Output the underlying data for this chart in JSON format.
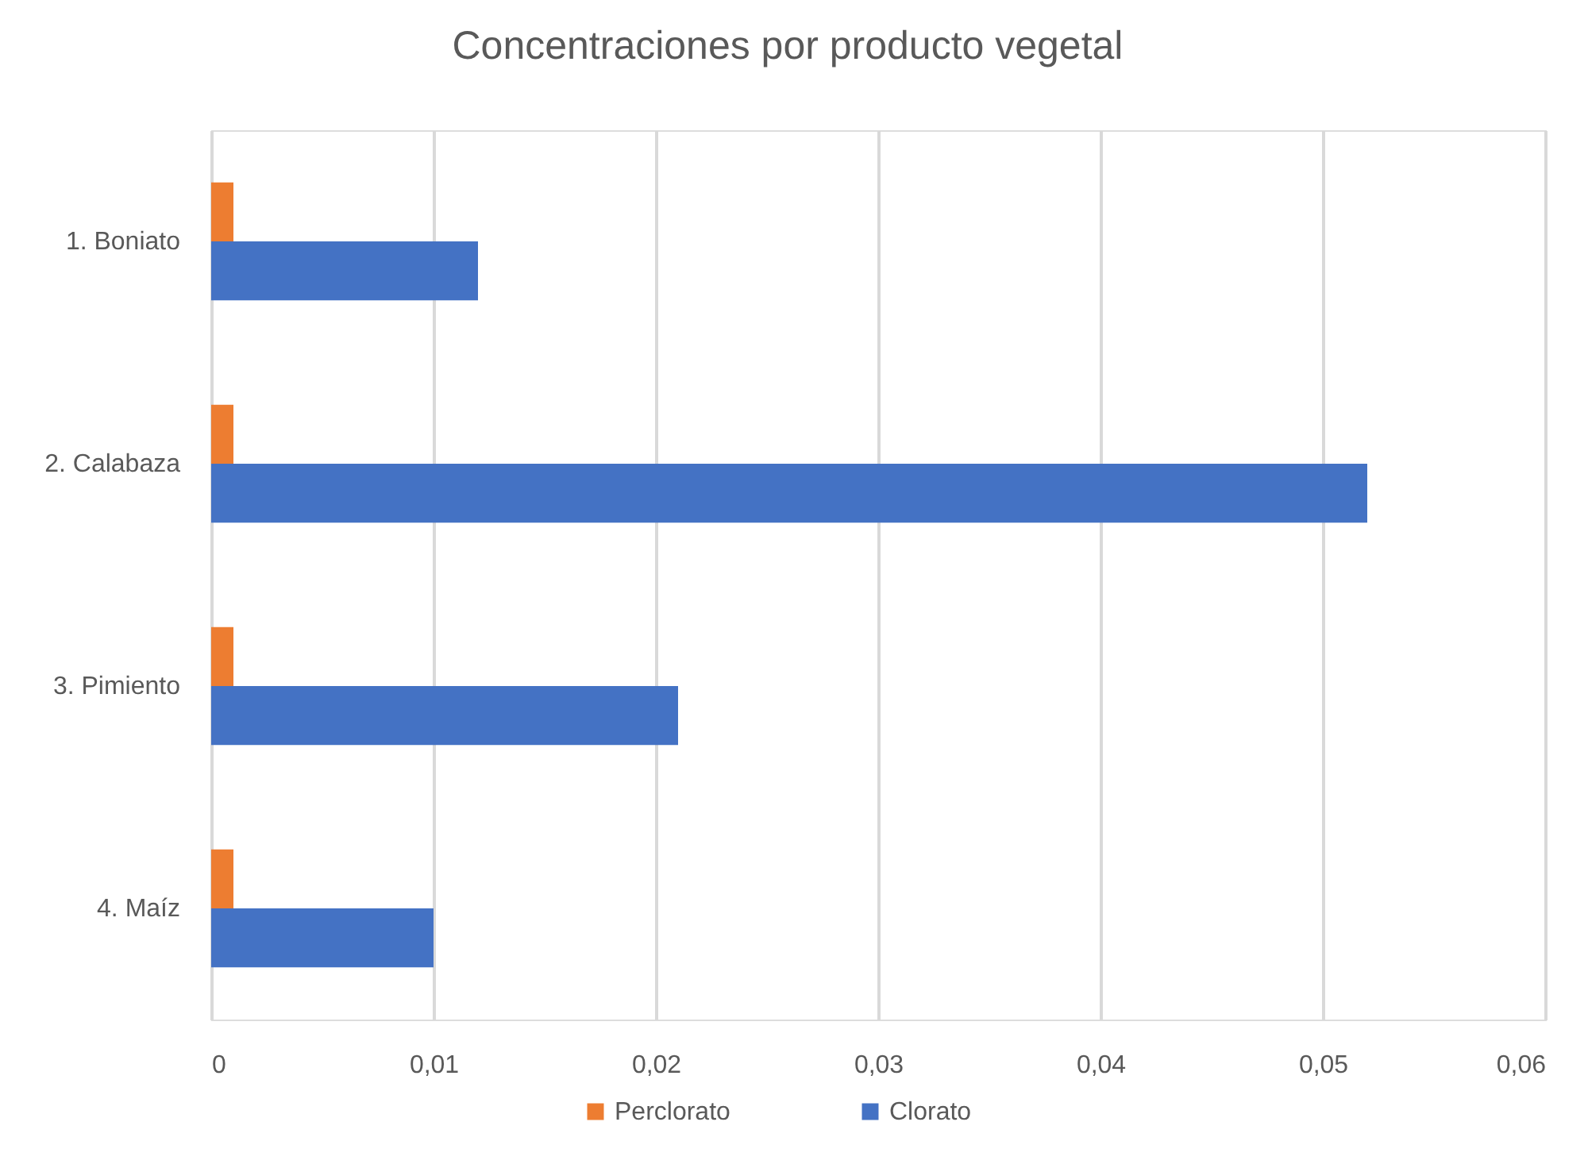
{
  "chart_data": {
    "type": "bar",
    "orientation": "horizontal",
    "title": "Concentraciones por producto vegetal",
    "categories": [
      "1. Boniato",
      "2. Calabaza",
      "3. Pimiento",
      "4. Maíz"
    ],
    "series": [
      {
        "name": "Perclorato",
        "color": "#ed7d31",
        "values": [
          0.001,
          0.001,
          0.001,
          0.001
        ]
      },
      {
        "name": "Clorato",
        "color": "#4472c4",
        "values": [
          0.012,
          0.052,
          0.021,
          0.01
        ]
      }
    ],
    "xlim": [
      0,
      0.06
    ],
    "xticks": [
      0,
      {
        "value": 0.01,
        "label": "0,01"
      },
      {
        "value": 0.02,
        "label": "0,02"
      },
      {
        "value": 0.03,
        "label": "0,03"
      },
      {
        "value": 0.04,
        "label": "0,04"
      },
      {
        "value": 0.05,
        "label": "0,05"
      },
      {
        "value": 0.06,
        "label": "0,06"
      }
    ],
    "grid": "x",
    "legend": "bottom"
  }
}
